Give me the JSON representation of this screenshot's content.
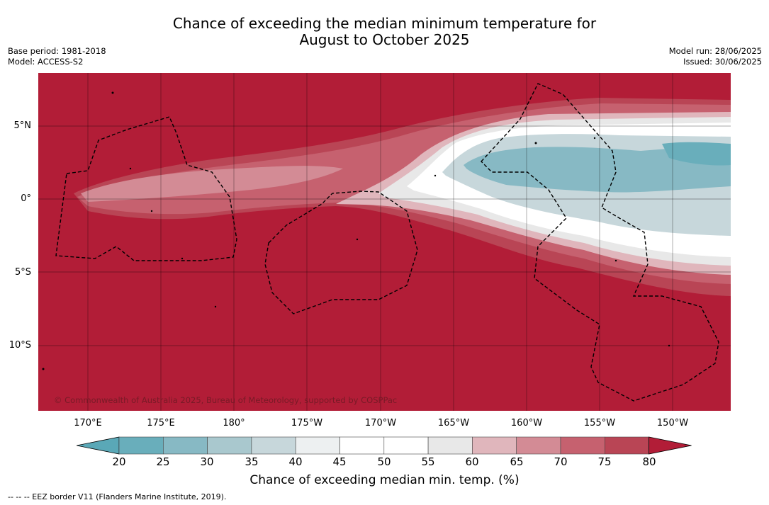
{
  "title_line1": "Chance of exceeding the median minimum temperature for",
  "title_line2": "August to October 2025",
  "base_period": "Base period: 1981-2018",
  "model": "Model: ACCESS-S2",
  "model_run": "Model run: 28/06/2025",
  "issued": "Issued: 30/06/2025",
  "copyright": "© Commonwealth of Australia 2025, Bureau of Meteorology, supported by COSPPac",
  "lat_ticks": [
    "5°N",
    "0°",
    "5°S",
    "10°S"
  ],
  "lon_ticks": [
    "170°E",
    "175°E",
    "180°",
    "175°W",
    "170°W",
    "165°W",
    "160°W",
    "155°W",
    "150°W"
  ],
  "colorbar": {
    "title": "Chance of exceeding median min. temp. (%)",
    "labels": [
      "20",
      "25",
      "30",
      "35",
      "40",
      "45",
      "50",
      "55",
      "60",
      "65",
      "70",
      "75",
      "80"
    ],
    "colors": [
      "#5aa8b7",
      "#69aebb",
      "#87b9c4",
      "#a9c8ce",
      "#c7d7db",
      "#edf0f1",
      "#ffffff",
      "#ffffff",
      "#e8e8e8",
      "#e0b6bc",
      "#d38b95",
      "#c6616f",
      "#b94555",
      "#b21d37"
    ]
  },
  "footnote": "--  --  -- EEZ border V11 (Flanders Marine Institute, 2019)."
}
